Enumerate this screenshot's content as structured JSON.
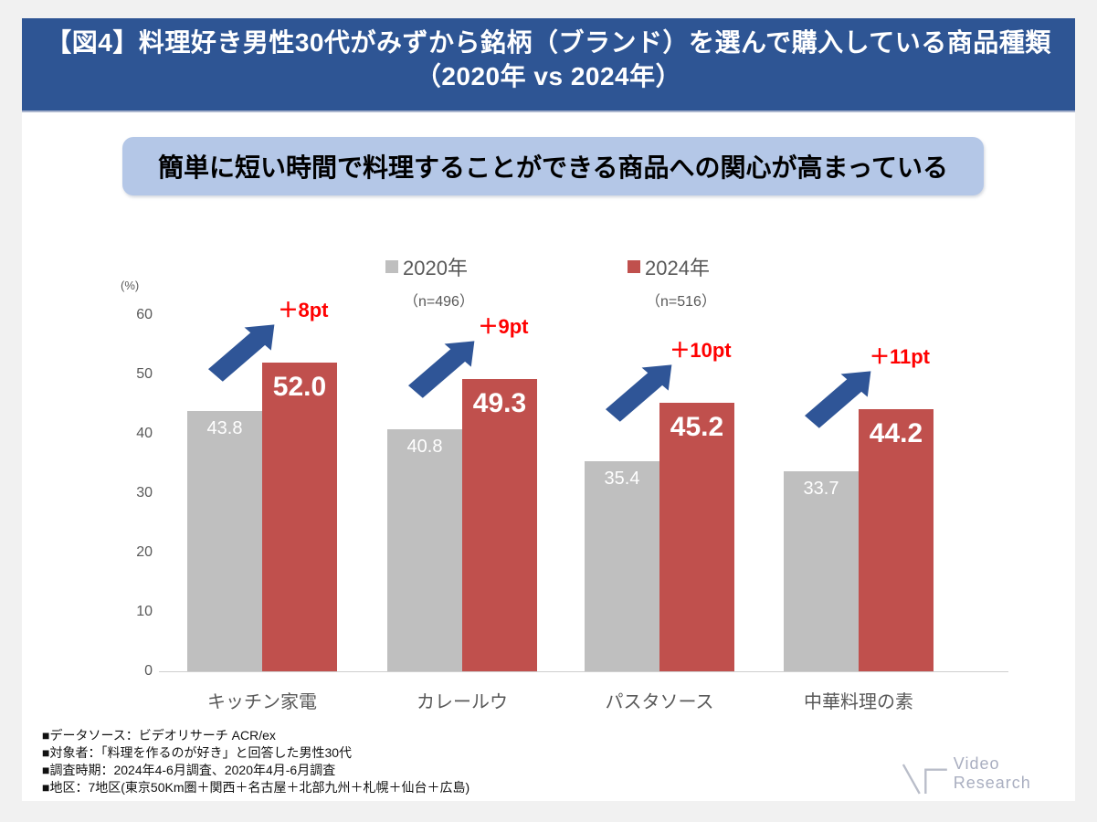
{
  "header": {
    "title_line1": "【図4】料理好き男性30代がみずから銘柄（ブランド）を選んで購入している商品種類",
    "title_line2": "（2020年 vs 2024年）"
  },
  "key_message": "簡単に短い時間で料理することができる商品への関心が高まっている",
  "chart_data": {
    "type": "bar",
    "title": "料理好き男性30代がみずから銘柄（ブランド）を選んで購入している商品種類（2020年 vs 2024年）",
    "unit_label": "(%)",
    "categories": [
      "キッチン家電",
      "カレールウ",
      "パスタソース",
      "中華料理の素"
    ],
    "series": [
      {
        "name": "2020年",
        "n_label": "（n=496）",
        "color": "#bfbfbf",
        "values": [
          43.8,
          40.8,
          35.4,
          33.7
        ]
      },
      {
        "name": "2024年",
        "n_label": "（n=516）",
        "color": "#c0504d",
        "values": [
          52.0,
          49.3,
          45.2,
          44.2
        ]
      }
    ],
    "diff_labels": [
      "＋8pt",
      "＋9pt",
      "＋10pt",
      "＋11pt"
    ],
    "diff_color": "#ff0000",
    "arrow_color": "#2f5597",
    "y_ticks": [
      0,
      10,
      20,
      30,
      40,
      50,
      60
    ],
    "ylim": [
      0,
      65
    ],
    "grid": false,
    "legend_position": "top",
    "value_label_decimals": 1
  },
  "footer": {
    "notes": [
      "■データソース：ビデオリサーチ ACR/ex",
      "■対象者：「料理を作るのが好き」と回答した男性30代",
      "■調査時期：2024年4-6月調査、2020年4月-6月調査",
      "■地区：7地区(東京50Km圏＋関西＋名古屋＋北部九州＋札幌＋仙台＋広島)"
    ],
    "logo_text": "Video Research"
  },
  "colors": {
    "header_bg": "#2e5594",
    "key_message_bg": "#b4c7e7",
    "axis_text": "#595959"
  }
}
